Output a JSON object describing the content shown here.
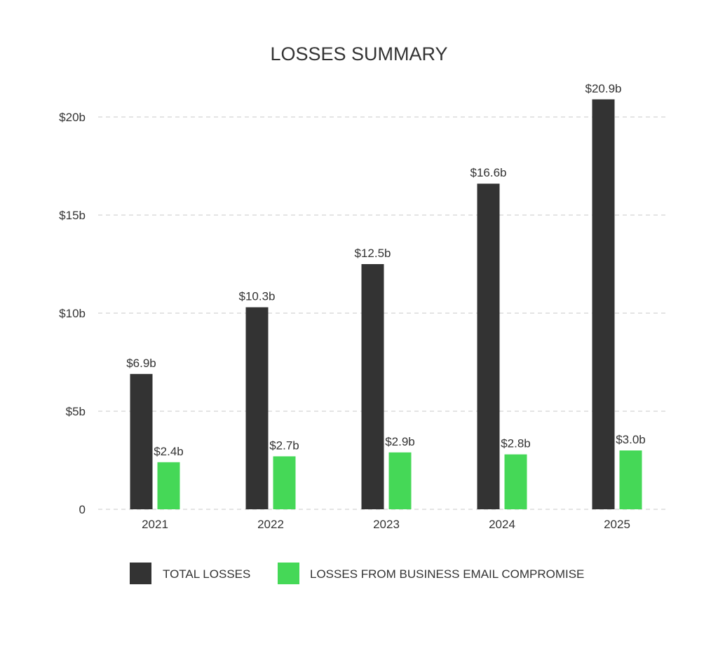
{
  "chart_data": {
    "type": "bar",
    "title": "LOSSES SUMMARY",
    "xlabel": "",
    "ylabel": "",
    "categories": [
      "2021",
      "2022",
      "2023",
      "2024",
      "2025"
    ],
    "series": [
      {
        "name": "TOTAL LOSSES",
        "color": "#333333",
        "values": [
          6.9,
          10.3,
          12.5,
          16.6,
          20.9
        ],
        "labels": [
          "$6.9b",
          "$10.3b",
          "$12.5b",
          "$16.6b",
          "$20.9b"
        ]
      },
      {
        "name": "LOSSES FROM BUSINESS EMAIL COMPROMISE",
        "color": "#45d857",
        "values": [
          2.4,
          2.7,
          2.9,
          2.8,
          3.0
        ],
        "labels": [
          "$2.4b",
          "$2.7b",
          "$2.9b",
          "$2.8b",
          "$3.0b"
        ]
      }
    ],
    "ylim": [
      0,
      20
    ],
    "yticks": [
      0,
      5,
      10,
      15,
      20
    ],
    "ytick_labels": [
      "0",
      "$5b",
      "$10b",
      "$15b",
      "$20b"
    ],
    "grid": true,
    "legend_position": "bottom"
  }
}
